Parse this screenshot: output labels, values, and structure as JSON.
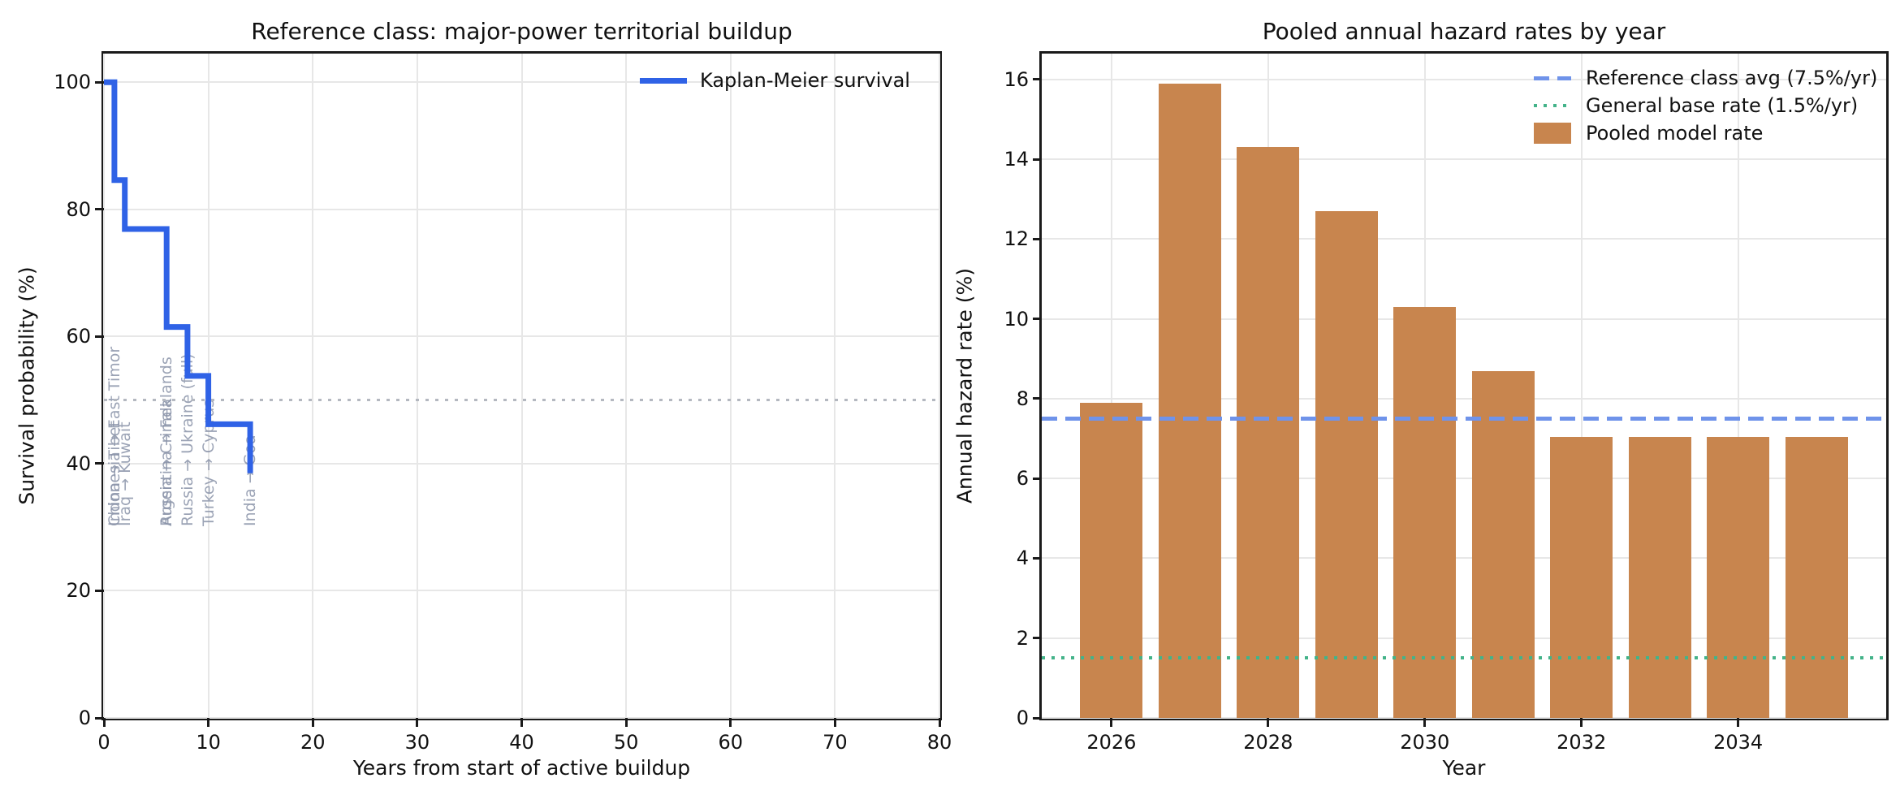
{
  "chart_data": [
    {
      "id": "km_survival",
      "type": "line",
      "title": "Reference class: major-power territorial buildup",
      "xlabel": "Years from start of active buildup",
      "ylabel": "Survival probability (%)",
      "xlim": [
        0,
        80
      ],
      "ylim": [
        0,
        104.5
      ],
      "xticks": [
        0,
        10,
        20,
        30,
        40,
        50,
        60,
        70,
        80
      ],
      "yticks": [
        0,
        20,
        40,
        60,
        80,
        100
      ],
      "grid": true,
      "legend_position": "upper right",
      "series": [
        {
          "name": "Kaplan-Meier survival",
          "color": "#2f62e6",
          "style": "step-post",
          "x": [
            0,
            1,
            2,
            6,
            8,
            10,
            14
          ],
          "y": [
            100,
            84.6,
            76.9,
            61.5,
            53.8,
            46.2,
            38.5
          ]
        }
      ],
      "reference_lines": [
        {
          "value": 50,
          "orientation": "horizontal",
          "style": "dotted",
          "color": "#b4b8c0"
        }
      ],
      "annotations": [
        {
          "label": "China → Tibet",
          "time": 1
        },
        {
          "label": "Indonesia → East Timor",
          "time": 1
        },
        {
          "label": "Iraq → Kuwait",
          "time": 2
        },
        {
          "label": "Russia → Crimea",
          "time": 6
        },
        {
          "label": "Argentina → Falklands",
          "time": 6
        },
        {
          "label": "Russia → Ukraine (full)",
          "time": 8
        },
        {
          "label": "Turkey → Cyprus",
          "time": 10
        },
        {
          "label": "India → Goa",
          "time": 14
        }
      ],
      "annotation_color": "#8a93a9"
    },
    {
      "id": "pooled_hazard",
      "type": "bar",
      "title": "Pooled annual hazard rates by year",
      "xlabel": "Year",
      "ylabel": "Annual hazard rate (%)",
      "categories": [
        2026,
        2027,
        2028,
        2029,
        2030,
        2031,
        2032,
        2033,
        2034,
        2035
      ],
      "values": [
        7.9,
        15.9,
        14.3,
        12.7,
        10.3,
        8.7,
        7.05,
        7.05,
        7.05,
        7.05
      ],
      "bar_label": "Pooled model rate",
      "bar_color": "#c8854e",
      "bar_width": 0.8,
      "xlim": [
        2025.11,
        2035.89
      ],
      "ylim": [
        0,
        16.65
      ],
      "xticks": [
        2026,
        2028,
        2030,
        2032,
        2034
      ],
      "yticks": [
        0,
        2,
        4,
        6,
        8,
        10,
        12,
        14,
        16
      ],
      "grid": true,
      "legend_position": "upper right",
      "reference_lines": [
        {
          "label": "Reference class avg (7.5%/yr)",
          "value": 7.5,
          "orientation": "horizontal",
          "style": "dashed",
          "color": "#6f93ea"
        },
        {
          "label": "General base rate (1.5%/yr)",
          "value": 1.5,
          "orientation": "horizontal",
          "style": "dotted",
          "color": "#43b389"
        }
      ]
    }
  ]
}
